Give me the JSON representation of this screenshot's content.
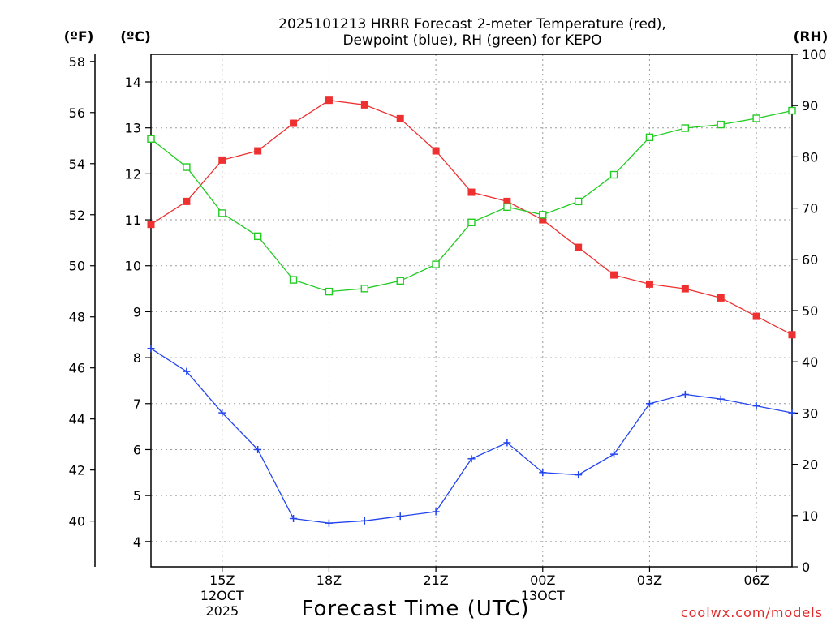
{
  "chart_data": {
    "type": "line",
    "title_line1": "2025101213 HRRR Forecast 2-meter Temperature (red),",
    "title_line2": "Dewpoint (blue), RH (green) for KEPO",
    "xlabel": "Forecast Time (UTC)",
    "credit": "coolwx.com/models",
    "units": {
      "fahrenheit": "(ºF)",
      "celsius": "(ºC)",
      "rh": "(RH)"
    },
    "x_range_hours": [
      13,
      31
    ],
    "x_ticks": [
      {
        "hour": 15,
        "lines": [
          "15Z",
          "12OCT",
          "2025"
        ]
      },
      {
        "hour": 18,
        "lines": [
          "18Z"
        ]
      },
      {
        "hour": 21,
        "lines": [
          "21Z"
        ]
      },
      {
        "hour": 24,
        "lines": [
          "00Z",
          "13OCT"
        ]
      },
      {
        "hour": 27,
        "lines": [
          "03Z"
        ]
      },
      {
        "hour": 30,
        "lines": [
          "06Z"
        ]
      }
    ],
    "celsius_axis": {
      "range": [
        3.45,
        14.6
      ],
      "ticks": [
        "4",
        "5",
        "6",
        "7",
        "8",
        "9",
        "10",
        "11",
        "12",
        "13",
        "14"
      ]
    },
    "fahrenheit_axis": {
      "range": [
        38.21,
        58.28
      ],
      "ticks": [
        "40",
        "42",
        "44",
        "46",
        "48",
        "50",
        "52",
        "54",
        "56",
        "58"
      ]
    },
    "rh_axis": {
      "range": [
        0,
        100
      ],
      "ticks": [
        "0",
        "10",
        "20",
        "30",
        "40",
        "50",
        "60",
        "70",
        "80",
        "90",
        "100"
      ]
    },
    "series": [
      {
        "name": "Temperature",
        "unit": "C",
        "color": "#ee3030",
        "marker": "filled-square",
        "x": [
          13,
          14,
          15,
          16,
          17,
          18,
          19,
          20,
          21,
          22,
          23,
          24,
          25,
          26,
          27,
          28,
          29,
          30,
          31
        ],
        "values": [
          10.9,
          11.4,
          12.3,
          12.5,
          13.1,
          13.6,
          13.5,
          13.2,
          12.5,
          11.6,
          11.4,
          11.0,
          10.4,
          9.8,
          9.6,
          9.5,
          9.3,
          8.9,
          8.5
        ]
      },
      {
        "name": "Dewpoint",
        "unit": "C",
        "color": "#2244ee",
        "marker": "plus",
        "x": [
          13,
          14,
          15,
          16,
          17,
          18,
          19,
          20,
          21,
          22,
          23,
          24,
          25,
          26,
          27,
          28,
          29,
          30,
          31
        ],
        "values": [
          8.2,
          7.7,
          6.8,
          6.0,
          4.5,
          4.4,
          4.45,
          4.55,
          4.65,
          5.8,
          6.15,
          5.5,
          5.45,
          5.9,
          7.0,
          7.2,
          7.1,
          6.95,
          6.8
        ]
      },
      {
        "name": "RH",
        "unit": "%",
        "color": "#22cc22",
        "marker": "open-square",
        "x": [
          13,
          14,
          15,
          16,
          17,
          18,
          19,
          20,
          21,
          22,
          23,
          24,
          25,
          26,
          27,
          28,
          29,
          30,
          31
        ],
        "values": [
          83.5,
          78.0,
          69.0,
          64.5,
          56.0,
          53.7,
          54.3,
          55.8,
          59.0,
          67.2,
          70.2,
          68.7,
          71.3,
          76.5,
          83.8,
          85.6,
          86.3,
          87.5,
          89.0
        ]
      }
    ]
  }
}
